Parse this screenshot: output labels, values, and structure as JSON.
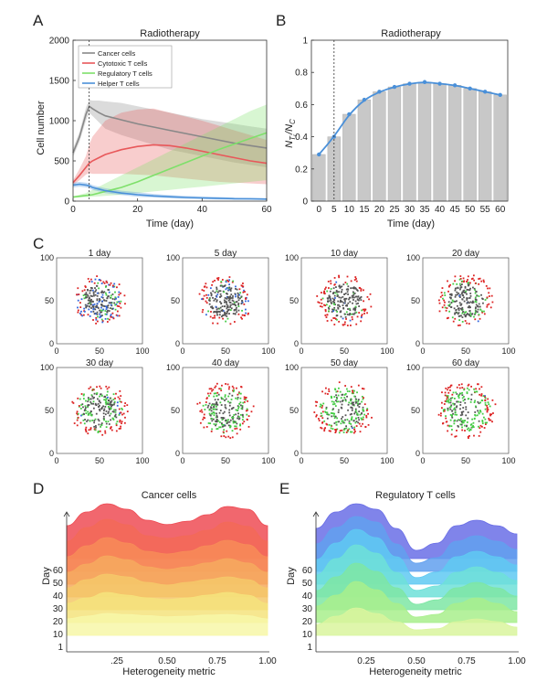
{
  "panel_labels": [
    "A",
    "B",
    "C",
    "D",
    "E"
  ],
  "chart_data": [
    {
      "id": "A",
      "type": "line",
      "title": "Radiotherapy",
      "xlabel": "Time (day)",
      "ylabel": "Cell number",
      "xlim": [
        0,
        60
      ],
      "ylim": [
        0,
        2000
      ],
      "xticks": [
        0,
        20,
        40,
        60
      ],
      "yticks": [
        0,
        500,
        1000,
        1500,
        2000
      ],
      "marker_day": 5,
      "legend": "top-left",
      "series": [
        {
          "name": "Cancer cells",
          "color": "#888888",
          "x": [
            0,
            2,
            4,
            5,
            6,
            8,
            10,
            15,
            20,
            25,
            30,
            35,
            40,
            45,
            50,
            55,
            60
          ],
          "y": [
            600,
            800,
            1080,
            1180,
            1150,
            1100,
            1060,
            1010,
            960,
            920,
            880,
            840,
            800,
            760,
            720,
            690,
            660
          ],
          "low": [
            550,
            740,
            1000,
            1100,
            1060,
            980,
            900,
            820,
            760,
            700,
            640,
            600,
            560,
            520,
            480,
            450,
            420
          ],
          "high": [
            650,
            860,
            1160,
            1260,
            1250,
            1250,
            1240,
            1220,
            1180,
            1140,
            1100,
            1060,
            1020,
            990,
            960,
            930,
            900
          ]
        },
        {
          "name": "Cytotoxic T cells",
          "color": "#e8585a",
          "x": [
            0,
            2,
            4,
            5,
            6,
            8,
            10,
            15,
            20,
            25,
            30,
            35,
            40,
            45,
            50,
            55,
            60
          ],
          "y": [
            230,
            320,
            420,
            470,
            500,
            540,
            580,
            640,
            680,
            700,
            690,
            660,
            620,
            580,
            540,
            500,
            470
          ],
          "low": [
            200,
            260,
            330,
            350,
            340,
            340,
            340,
            340,
            330,
            320,
            300,
            280,
            260,
            240,
            230,
            220,
            210
          ],
          "high": [
            260,
            400,
            560,
            700,
            800,
            900,
            1000,
            1100,
            1140,
            1150,
            1100,
            1050,
            1000,
            940,
            880,
            820,
            760
          ]
        },
        {
          "name": "Regulatory T cells",
          "color": "#7ee06a",
          "x": [
            0,
            2,
            4,
            5,
            6,
            8,
            10,
            15,
            20,
            25,
            30,
            35,
            40,
            45,
            50,
            55,
            60
          ],
          "y": [
            50,
            60,
            70,
            75,
            80,
            100,
            120,
            170,
            240,
            320,
            400,
            480,
            560,
            640,
            710,
            780,
            850
          ],
          "low": [
            40,
            45,
            50,
            52,
            55,
            60,
            65,
            80,
            100,
            120,
            140,
            160,
            180,
            200,
            220,
            240,
            260
          ],
          "high": [
            60,
            80,
            100,
            120,
            140,
            180,
            220,
            320,
            420,
            520,
            620,
            720,
            820,
            920,
            1020,
            1120,
            1200
          ]
        },
        {
          "name": "Helper T cells",
          "color": "#4a90d9",
          "x": [
            0,
            2,
            4,
            5,
            6,
            8,
            10,
            15,
            20,
            25,
            30,
            35,
            40,
            45,
            50,
            55,
            60
          ],
          "y": [
            200,
            210,
            200,
            190,
            170,
            150,
            130,
            100,
            80,
            65,
            55,
            45,
            40,
            35,
            30,
            28,
            25
          ],
          "low": [
            170,
            180,
            170,
            160,
            140,
            120,
            100,
            75,
            55,
            45,
            35,
            28,
            24,
            20,
            18,
            16,
            15
          ],
          "high": [
            230,
            240,
            230,
            220,
            200,
            180,
            160,
            130,
            110,
            90,
            75,
            65,
            58,
            52,
            46,
            42,
            38
          ]
        }
      ]
    },
    {
      "id": "B",
      "type": "bar",
      "title": "Radiotherapy",
      "xlabel": "Time (day)",
      "ylabel": "N_Tr / N_C",
      "ylabel_main": "N",
      "ylabel_sub1": "T",
      "ylabel_sub1b": "r",
      "ylabel_mid": "/N",
      "ylabel_sub2": "C",
      "xlim": [
        0,
        60
      ],
      "ylim": [
        0,
        1
      ],
      "yticks": [
        0,
        0.2,
        0.4,
        0.6,
        0.8,
        1
      ],
      "yticklabels": [
        "0",
        "0.2",
        "0.4",
        "0.6",
        "0.8",
        "1"
      ],
      "marker_day": 5,
      "categories": [
        "0",
        "5",
        "10",
        "15",
        "20",
        "25",
        "30",
        "35",
        "40",
        "45",
        "50",
        "55",
        "60"
      ],
      "x": [
        0,
        5,
        10,
        15,
        20,
        25,
        30,
        35,
        40,
        45,
        50,
        55,
        60
      ],
      "values": [
        0.29,
        0.4,
        0.54,
        0.63,
        0.68,
        0.71,
        0.73,
        0.74,
        0.73,
        0.72,
        0.7,
        0.68,
        0.66
      ],
      "fit_color": "#4a90d9",
      "bar_color": "#c8c8c8"
    },
    {
      "id": "C",
      "type": "scatter",
      "xlim": [
        0,
        100
      ],
      "ylim": [
        0,
        100
      ],
      "xticks": [
        0,
        50,
        100
      ],
      "yticks": [
        0,
        50,
        100
      ],
      "days": [
        "1 day",
        "5 day",
        "10 day",
        "20 day",
        "30 day",
        "40 day",
        "50 day",
        "60 day"
      ],
      "composition": [
        {
          "cancer": 0.45,
          "cytotoxic": 0.2,
          "regulatory": 0.1,
          "helper": 0.25
        },
        {
          "cancer": 0.55,
          "cytotoxic": 0.25,
          "regulatory": 0.1,
          "helper": 0.1
        },
        {
          "cancer": 0.55,
          "cytotoxic": 0.3,
          "regulatory": 0.12,
          "helper": 0.03
        },
        {
          "cancer": 0.5,
          "cytotoxic": 0.28,
          "regulatory": 0.2,
          "helper": 0.02
        },
        {
          "cancer": 0.35,
          "cytotoxic": 0.3,
          "regulatory": 0.34,
          "helper": 0.01
        },
        {
          "cancer": 0.3,
          "cytotoxic": 0.3,
          "regulatory": 0.39,
          "helper": 0.01
        },
        {
          "cancer": 0.25,
          "cytotoxic": 0.3,
          "regulatory": 0.44,
          "helper": 0.01
        },
        {
          "cancer": 0.2,
          "cytotoxic": 0.32,
          "regulatory": 0.47,
          "helper": 0.01
        }
      ],
      "colors": {
        "cancer": "#555555",
        "cytotoxic": "#dd2222",
        "regulatory": "#44cc44",
        "helper": "#3366dd"
      }
    },
    {
      "id": "D",
      "type": "area",
      "title": "Cancer cells",
      "xlabel": "Heterogeneity metric",
      "ylabel": "Day",
      "xticks": [
        0.25,
        0.5,
        0.75,
        1.0
      ],
      "xticklabels": [
        ".25",
        "0.50",
        "0.75",
        "1.00"
      ],
      "yticklabels": [
        "1",
        "10",
        "20",
        "30",
        "40",
        "50",
        "60"
      ],
      "x": [
        0,
        0.1,
        0.2,
        0.3,
        0.4,
        0.5,
        0.6,
        0.7,
        0.8,
        0.9,
        1.0
      ],
      "series": [
        {
          "day": 1,
          "color": "#f7f7a8",
          "y": [
            0.3,
            0.35,
            0.4,
            0.38,
            0.36,
            0.34,
            0.35,
            0.37,
            0.38,
            0.36,
            0.3
          ]
        },
        {
          "day": 10,
          "color": "#f5e37c",
          "y": [
            0.35,
            0.45,
            0.55,
            0.5,
            0.45,
            0.42,
            0.45,
            0.5,
            0.55,
            0.5,
            0.35
          ]
        },
        {
          "day": 20,
          "color": "#f5c86a",
          "y": [
            0.4,
            0.55,
            0.65,
            0.6,
            0.5,
            0.45,
            0.5,
            0.55,
            0.6,
            0.55,
            0.4
          ]
        },
        {
          "day": 30,
          "color": "#f6a95e",
          "y": [
            0.45,
            0.6,
            0.75,
            0.68,
            0.55,
            0.5,
            0.55,
            0.62,
            0.7,
            0.62,
            0.45
          ]
        },
        {
          "day": 40,
          "color": "#f78c58",
          "y": [
            0.5,
            0.7,
            0.85,
            0.75,
            0.6,
            0.55,
            0.6,
            0.7,
            0.8,
            0.72,
            0.5
          ]
        },
        {
          "day": 50,
          "color": "#f36a58",
          "y": [
            0.55,
            0.8,
            0.95,
            0.85,
            0.65,
            0.6,
            0.65,
            0.75,
            0.9,
            0.82,
            0.55
          ]
        },
        {
          "day": 60,
          "color": "#ee4c55",
          "y": [
            0.6,
            0.85,
            1.0,
            0.9,
            0.7,
            0.62,
            0.68,
            0.8,
            0.95,
            0.9,
            0.6
          ]
        }
      ]
    },
    {
      "id": "E",
      "type": "area",
      "title": "Regulatory T cells",
      "xlabel": "Heterogeneity metric",
      "ylabel": "Day",
      "xticks": [
        0.25,
        0.5,
        0.75,
        1.0
      ],
      "xticklabels": [
        "0.25",
        "0.50",
        "0.75",
        "1.00"
      ],
      "yticklabels": [
        "1",
        "10",
        "20",
        "30",
        "40",
        "50",
        "60"
      ],
      "x": [
        0,
        0.1,
        0.2,
        0.3,
        0.4,
        0.5,
        0.6,
        0.7,
        0.8,
        0.9,
        1.0
      ],
      "series": [
        {
          "day": 1,
          "color": "#d9f59e",
          "y": [
            0.2,
            0.35,
            0.5,
            0.4,
            0.25,
            0.1,
            0.12,
            0.25,
            0.3,
            0.25,
            0.15
          ]
        },
        {
          "day": 10,
          "color": "#a8ef8c",
          "y": [
            0.3,
            0.5,
            0.75,
            0.6,
            0.35,
            0.1,
            0.15,
            0.35,
            0.45,
            0.35,
            0.2
          ]
        },
        {
          "day": 20,
          "color": "#7ee6a4",
          "y": [
            0.35,
            0.6,
            0.85,
            0.7,
            0.4,
            0.1,
            0.18,
            0.4,
            0.5,
            0.4,
            0.25
          ]
        },
        {
          "day": 30,
          "color": "#6ee0d8",
          "y": [
            0.4,
            0.7,
            0.95,
            0.8,
            0.45,
            0.12,
            0.2,
            0.45,
            0.55,
            0.45,
            0.3
          ]
        },
        {
          "day": 40,
          "color": "#5fc9f2",
          "y": [
            0.45,
            0.75,
            1.0,
            0.85,
            0.5,
            0.12,
            0.22,
            0.5,
            0.6,
            0.5,
            0.35
          ]
        },
        {
          "day": 50,
          "color": "#62a0ef",
          "y": [
            0.5,
            0.8,
            1.0,
            0.9,
            0.5,
            0.15,
            0.25,
            0.55,
            0.65,
            0.55,
            0.4
          ]
        },
        {
          "day": 60,
          "color": "#6a6ee6",
          "y": [
            0.55,
            0.85,
            1.0,
            0.9,
            0.55,
            0.15,
            0.28,
            0.6,
            0.7,
            0.6,
            0.45
          ]
        }
      ]
    }
  ]
}
